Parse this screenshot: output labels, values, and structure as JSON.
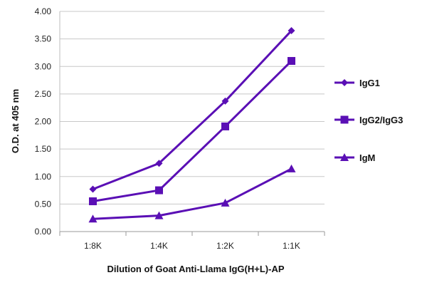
{
  "chart_data": {
    "type": "line",
    "categories": [
      "1:8K",
      "1:4K",
      "1:2K",
      "1:1K"
    ],
    "xlabel": "Dilution of Goat Anti-Llama IgG(H+L)-AP",
    "ylabel": "O.D. at 405 nm",
    "ylim": [
      0,
      4
    ],
    "yticks": [
      "0.00",
      "0.50",
      "1.00",
      "1.50",
      "2.00",
      "2.50",
      "3.00",
      "3.50",
      "4.00"
    ],
    "grid": true,
    "legend": "right",
    "color": "#5a0fb5",
    "series": [
      {
        "name": "IgG1",
        "marker": "diamond",
        "values": [
          0.77,
          1.24,
          2.37,
          3.65
        ]
      },
      {
        "name": "IgG2/IgG3",
        "marker": "square",
        "values": [
          0.55,
          0.75,
          1.91,
          3.1
        ]
      },
      {
        "name": "IgM",
        "marker": "triangle",
        "values": [
          0.23,
          0.29,
          0.52,
          1.14
        ]
      }
    ]
  }
}
